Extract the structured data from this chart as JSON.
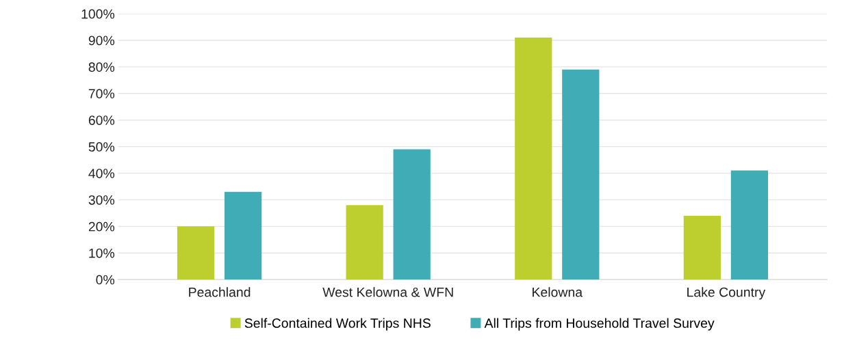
{
  "chart_data": {
    "type": "bar",
    "categories": [
      "Peachland",
      "West Kelowna & WFN",
      "Kelowna",
      "Lake Country"
    ],
    "series": [
      {
        "name": "Self-Contained Work Trips NHS",
        "color": "#bccf2f",
        "values": [
          20,
          28,
          91,
          24
        ]
      },
      {
        "name": "All Trips from Household Travel Survey",
        "color": "#40adb6",
        "values": [
          33,
          49,
          79,
          41
        ]
      }
    ],
    "ylim": [
      0,
      100
    ],
    "yticks": [
      {
        "value": 0,
        "label": "0%"
      },
      {
        "value": 10,
        "label": "10%"
      },
      {
        "value": 20,
        "label": "20%"
      },
      {
        "value": 30,
        "label": "30%"
      },
      {
        "value": 40,
        "label": "40%"
      },
      {
        "value": 50,
        "label": "50%"
      },
      {
        "value": 60,
        "label": "60%"
      },
      {
        "value": 70,
        "label": "70%"
      },
      {
        "value": 80,
        "label": "80%"
      },
      {
        "value": 90,
        "label": "90%"
      },
      {
        "value": 100,
        "label": "100%"
      }
    ],
    "grid": "y",
    "legend": "bottom"
  }
}
